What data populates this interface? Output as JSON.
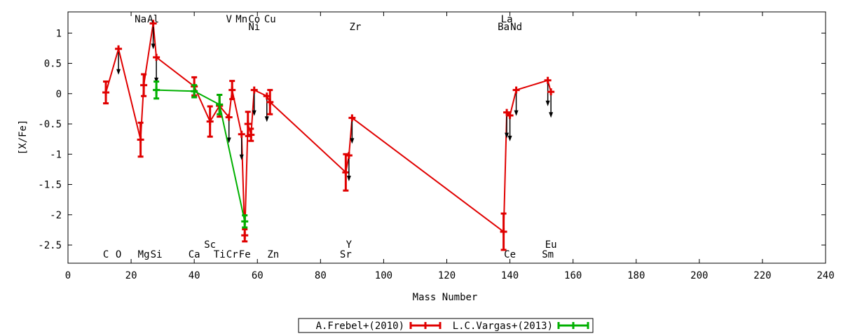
{
  "chart_data": {
    "type": "scatter",
    "xlabel": "Mass Number",
    "ylabel": "[X/Fe]",
    "xlim": [
      0,
      240
    ],
    "ylim": [
      -2.8,
      1.35
    ],
    "xticks": [
      0,
      20,
      40,
      60,
      80,
      100,
      120,
      140,
      160,
      180,
      200,
      220,
      240
    ],
    "yticks": [
      -2.5,
      -2,
      -1.5,
      -1,
      -0.5,
      0,
      0.5,
      1
    ],
    "ytick_labels": [
      "-2.5",
      "-2",
      "-1.5",
      "-1",
      "-0.5",
      "0",
      "0.5",
      "1"
    ],
    "grid": false,
    "legend_position": "bottom-center",
    "series": [
      {
        "name": "A.Frebel+(2010)",
        "color": "#e00000",
        "points": [
          {
            "x": 12,
            "y": 0.02,
            "err": 0.18
          },
          {
            "x": 16,
            "y": 0.74,
            "upper_limit": true
          },
          {
            "x": 23,
            "y": -0.76,
            "err": 0.28
          },
          {
            "x": 24,
            "y": 0.14,
            "err": 0.18
          },
          {
            "x": 27,
            "y": 1.16,
            "upper_limit": true
          },
          {
            "x": 28,
            "y": 0.6,
            "upper_limit": true
          },
          {
            "x": 40,
            "y": 0.12,
            "err": 0.15
          },
          {
            "x": 45,
            "y": -0.46,
            "err": 0.25
          },
          {
            "x": 48,
            "y": -0.2,
            "err": 0.18
          },
          {
            "x": 51,
            "y": -0.39,
            "upper_limit": true
          },
          {
            "x": 52,
            "y": 0.06,
            "err": 0.15
          },
          {
            "x": 55,
            "y": -0.67,
            "upper_limit": true
          },
          {
            "x": 56,
            "y": -2.34,
            "err": 0.1
          },
          {
            "x": 57,
            "y": -0.5,
            "err": 0.2
          },
          {
            "x": 58,
            "y": -0.68,
            "err": 0.1
          },
          {
            "x": 59,
            "y": 0.06,
            "upper_limit": true
          },
          {
            "x": 63,
            "y": -0.04,
            "upper_limit": true
          },
          {
            "x": 64,
            "y": -0.14,
            "err": 0.2
          },
          {
            "x": 88,
            "y": -1.3,
            "err": 0.3
          },
          {
            "x": 89,
            "y": -1.02,
            "upper_limit": true
          },
          {
            "x": 90,
            "y": -0.4,
            "upper_limit": true
          },
          {
            "x": 138,
            "y": -2.28,
            "err": 0.3
          },
          {
            "x": 139,
            "y": -0.31,
            "upper_limit": true
          },
          {
            "x": 140,
            "y": -0.36,
            "upper_limit": true
          },
          {
            "x": 142,
            "y": 0.06,
            "upper_limit": true
          },
          {
            "x": 152,
            "y": 0.22,
            "upper_limit": true
          },
          {
            "x": 153,
            "y": 0.03,
            "upper_limit": true
          }
        ]
      },
      {
        "name": "L.C.Vargas+(2013)",
        "color": "#00b000",
        "points": [
          {
            "x": 28,
            "y": 0.06,
            "err": 0.14
          },
          {
            "x": 40,
            "y": 0.04,
            "err": 0.1
          },
          {
            "x": 48,
            "y": -0.18,
            "err": 0.16
          },
          {
            "x": 56,
            "y": -2.11,
            "err": 0.1
          }
        ]
      }
    ],
    "element_labels": {
      "top": [
        {
          "text": "Na",
          "x": 23,
          "row": 1
        },
        {
          "text": "Al",
          "x": 27,
          "row": 1
        },
        {
          "text": "V",
          "x": 51,
          "row": 1
        },
        {
          "text": "Mn",
          "x": 55,
          "row": 1
        },
        {
          "text": "Co",
          "x": 59,
          "row": 1
        },
        {
          "text": "Cu",
          "x": 64,
          "row": 1
        },
        {
          "text": "Ni",
          "x": 59,
          "row": 2
        },
        {
          "text": "Zr",
          "x": 91,
          "row": 2
        },
        {
          "text": "La",
          "x": 139,
          "row": 1
        },
        {
          "text": "Ba",
          "x": 138,
          "row": 2
        },
        {
          "text": "Nd",
          "x": 142,
          "row": 2
        }
      ],
      "bottom": [
        {
          "text": "Sc",
          "x": 45,
          "row": 1
        },
        {
          "text": "Y",
          "x": 89,
          "row": 1
        },
        {
          "text": "Eu",
          "x": 153,
          "row": 1
        },
        {
          "text": "C",
          "x": 12,
          "row": 2
        },
        {
          "text": "O",
          "x": 16,
          "row": 2
        },
        {
          "text": "Mg",
          "x": 24,
          "row": 2
        },
        {
          "text": "Si",
          "x": 28,
          "row": 2
        },
        {
          "text": "Ca",
          "x": 40,
          "row": 2
        },
        {
          "text": "Ti",
          "x": 48,
          "row": 2
        },
        {
          "text": "Cr",
          "x": 52,
          "row": 2
        },
        {
          "text": "Fe",
          "x": 56,
          "row": 2
        },
        {
          "text": "Zn",
          "x": 65,
          "row": 2
        },
        {
          "text": "Sr",
          "x": 88,
          "row": 2
        },
        {
          "text": "Ce",
          "x": 140,
          "row": 2
        },
        {
          "text": "Sm",
          "x": 152,
          "row": 2
        }
      ]
    }
  }
}
